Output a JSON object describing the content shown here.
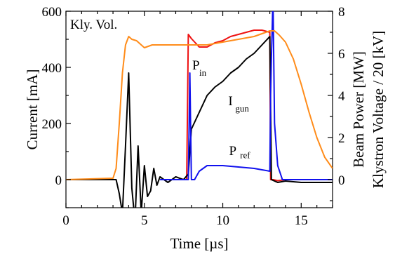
{
  "chart_data": {
    "type": "line",
    "xlabel": "Time [µs]",
    "ylabel_left": "Current [mA]",
    "ylabel_right_outer": "Klystron Voltage / 20 [kV]",
    "ylabel_right_inner": "Beam Power [MW]",
    "xlim": [
      0,
      17
    ],
    "ylim_left": [
      -100,
      600
    ],
    "ylim_right": [
      -1.333,
      8
    ],
    "x_ticks": [
      0,
      5,
      10,
      15
    ],
    "y_left_ticks": [
      0,
      200,
      400,
      600
    ],
    "y_right_ticks": [
      0,
      2,
      4,
      6,
      8
    ],
    "annotations": [
      {
        "text": "Kly. Vol.",
        "sub": ""
      },
      {
        "text": "P",
        "sub": "in"
      },
      {
        "text": "I",
        "sub": "gun"
      },
      {
        "text": "P",
        "sub": "ref"
      }
    ],
    "series": [
      {
        "label_index": 0,
        "color": "#ff8c1a",
        "axis": "left",
        "x": [
          0,
          3.0,
          3.2,
          3.4,
          3.6,
          3.8,
          4.0,
          4.2,
          4.5,
          5.0,
          5.5,
          6.0,
          7.0,
          8.0,
          9.0,
          10.0,
          11.0,
          12.0,
          12.5,
          13.0,
          13.3,
          13.6,
          14.0,
          14.5,
          15.0,
          15.5,
          16.0,
          16.5,
          17.0
        ],
        "y": [
          0,
          5,
          40,
          200,
          380,
          480,
          510,
          500,
          495,
          470,
          480,
          480,
          480,
          480,
          480,
          490,
          500,
          510,
          520,
          530,
          530,
          515,
          490,
          430,
          340,
          240,
          150,
          80,
          40
        ]
      },
      {
        "label_index": 1,
        "color": "#ee1111",
        "axis": "right",
        "x": [
          7.7,
          7.8,
          8.0,
          8.5,
          9.0,
          9.5,
          10.0,
          10.5,
          11.0,
          11.5,
          12.0,
          12.5,
          13.0,
          13.05,
          13.2,
          13.5,
          14.0,
          15.0,
          17.0
        ],
        "y": [
          0,
          6.9,
          6.7,
          6.3,
          6.3,
          6.5,
          6.6,
          6.8,
          6.9,
          7.0,
          7.1,
          7.1,
          7.0,
          0,
          0,
          -0.05,
          0,
          0,
          0
        ]
      },
      {
        "label_index": 2,
        "color": "#000000",
        "axis": "left",
        "x": [
          0,
          3.2,
          3.4,
          3.6,
          3.8,
          4.0,
          4.2,
          4.4,
          4.6,
          4.8,
          5.0,
          5.2,
          5.4,
          5.6,
          5.8,
          6.0,
          6.5,
          7.0,
          7.5,
          7.8,
          8.0,
          8.5,
          9.0,
          9.5,
          10.0,
          10.5,
          11.0,
          11.5,
          12.0,
          12.5,
          13.0,
          13.1,
          13.5,
          14.0,
          15.0,
          17.0
        ],
        "y": [
          0,
          0,
          -50,
          -120,
          120,
          380,
          -30,
          -150,
          120,
          -120,
          50,
          -60,
          -40,
          40,
          -20,
          10,
          -10,
          10,
          0,
          20,
          180,
          240,
          300,
          330,
          350,
          380,
          400,
          430,
          450,
          480,
          510,
          0,
          -10,
          -5,
          -10,
          -10
        ]
      },
      {
        "label_index": 3,
        "color": "#1111ee",
        "axis": "left",
        "x": [
          6.0,
          7.7,
          7.8,
          7.9,
          8.0,
          8.2,
          8.5,
          9.0,
          10.0,
          11.0,
          12.0,
          12.5,
          13.0,
          13.05,
          13.1,
          13.2,
          13.3,
          13.5,
          13.8,
          14.0,
          17.0
        ],
        "y": [
          0,
          0,
          0,
          380,
          0,
          0,
          30,
          50,
          50,
          45,
          40,
          35,
          30,
          300,
          430,
          650,
          200,
          50,
          0,
          0,
          0
        ]
      }
    ]
  }
}
